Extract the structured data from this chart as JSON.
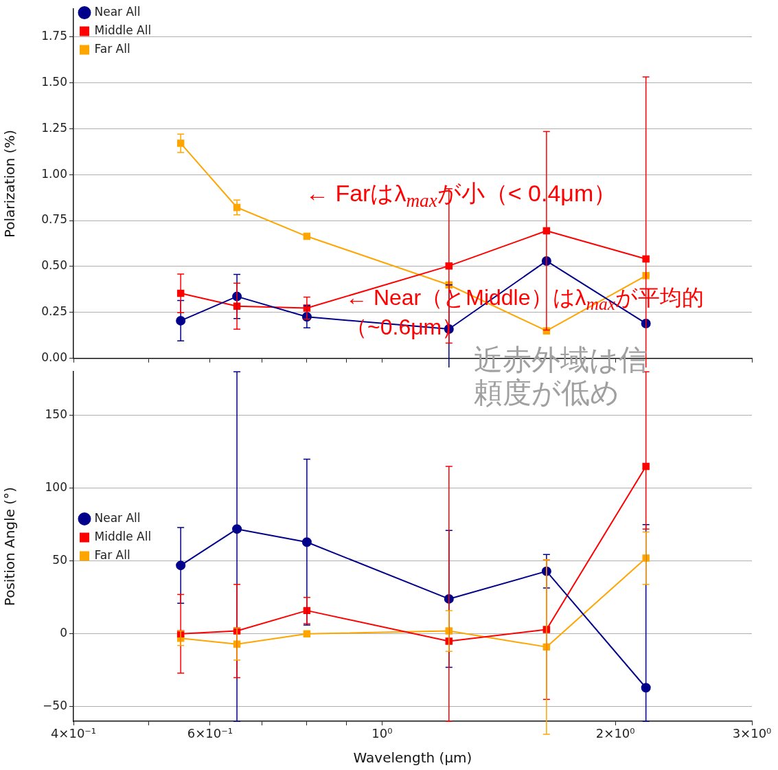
{
  "chart_data": [
    {
      "type": "line",
      "ylabel": "Polarization (%)",
      "x": [
        0.55,
        0.65,
        0.8,
        1.22,
        1.63,
        2.19
      ],
      "xlim": [
        0.4,
        3.0
      ],
      "xticks": [
        {
          "value": 0.4,
          "label": null
        },
        {
          "value": 0.5,
          "label": null
        },
        {
          "value": 0.6,
          "label": null
        },
        {
          "value": 0.7,
          "label": null
        },
        {
          "value": 0.8,
          "label": null
        },
        {
          "value": 0.9,
          "label": null
        },
        {
          "value": 1,
          "label": null
        },
        {
          "value": 2,
          "label": null
        },
        {
          "value": 3,
          "label": null
        }
      ],
      "ylim": [
        0,
        1.9
      ],
      "yticks": [
        {
          "value": 0,
          "label": "0.00"
        },
        {
          "value": 0.25,
          "label": "0.25"
        },
        {
          "value": 0.5,
          "label": "0.50"
        },
        {
          "value": 0.75,
          "label": "0.75"
        },
        {
          "value": 1,
          "label": "1.00"
        },
        {
          "value": 1.25,
          "label": "1.25"
        },
        {
          "value": 1.5,
          "label": "1.50"
        },
        {
          "value": 1.75,
          "label": "1.75"
        }
      ],
      "log": "x",
      "tick_labels": "y",
      "grid": "y",
      "legend": "top left",
      "line_style": "solid",
      "series": [
        {
          "name": "Near All",
          "color": "#00008b",
          "marker": "circle",
          "values": [
            0.205,
            0.337,
            0.226,
            0.16,
            0.53,
            0.19
          ],
          "errors": [
            0.11,
            0.12,
            0.06,
            0.24,
            null,
            null
          ]
        },
        {
          "name": "Middle All",
          "color": "#ff0000",
          "marker": "square",
          "values": [
            0.354,
            0.284,
            0.274,
            0.503,
            0.694,
            0.541
          ],
          "errors": [
            0.105,
            0.125,
            0.06,
            0.42,
            0.54,
            0.99
          ]
        },
        {
          "name": "Far All",
          "color": "#ffa500",
          "marker": "square",
          "values": [
            1.17,
            0.821,
            0.664,
            0.4,
            0.15,
            0.45
          ],
          "errors": [
            0.05,
            0.04,
            null,
            null,
            null,
            null
          ]
        }
      ],
      "annotations": [
        "← Farはλ$_{max}$が小（< 0.4μm）",
        "← Near（とMiddle）はλ$_{max}$が平均的（~0.6μm）"
      ]
    },
    {
      "type": "line",
      "xlabel": "Wavelength (μm)",
      "ylabel": "Position Angle (°)",
      "x": [
        0.55,
        0.65,
        0.8,
        1.22,
        1.63,
        2.19
      ],
      "xlim": [
        0.4,
        3.0
      ],
      "xticks": [
        {
          "value": 0.4,
          "label": "4×10⁻¹"
        },
        {
          "value": 0.5,
          "label": null
        },
        {
          "value": 0.6,
          "label": "6×10⁻¹"
        },
        {
          "value": 0.7,
          "label": null
        },
        {
          "value": 0.8,
          "label": null
        },
        {
          "value": 0.9,
          "label": null
        },
        {
          "value": 1,
          "label": "10⁰"
        },
        {
          "value": 2,
          "label": "2×10⁰"
        },
        {
          "value": 3,
          "label": "3×10⁰"
        }
      ],
      "ylim": [
        -60,
        180
      ],
      "yticks": [
        {
          "value": -50,
          "label": "−50"
        },
        0,
        50,
        100,
        150
      ],
      "log": "x",
      "grid": "y",
      "legend": "top",
      "line_style": "solid",
      "series": [
        {
          "name": "Near All",
          "color": "#00008b",
          "marker": "circle",
          "values": [
            47,
            72,
            63,
            24,
            43,
            -37
          ],
          "errors": [
            26,
            [
              -60,
              180
            ],
            57,
            47,
            11.5,
            [
              -60,
              75
            ]
          ]
        },
        {
          "name": "Middle All",
          "color": "#ff0000",
          "marker": "square",
          "values": [
            0,
            2,
            16,
            -5,
            3,
            115
          ],
          "errors": [
            27,
            32,
            9,
            [
              -60,
              115
            ],
            48,
            [
              72,
              180
            ]
          ]
        },
        {
          "name": "Far All",
          "color": "#ffa500",
          "marker": "square",
          "values": [
            -3,
            -7,
            0,
            2,
            -9,
            52
          ],
          "errors": [
            5,
            11,
            null,
            14,
            60,
            18
          ]
        }
      ],
      "annotations": [
        "近赤外域は信頼度が低め"
      ]
    }
  ]
}
